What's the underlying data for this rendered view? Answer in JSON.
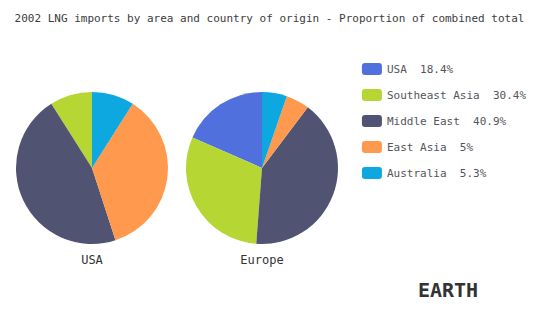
{
  "chart_data": {
    "type": "pie",
    "title": "2002 LNG imports by area and country of origin - Proportion of combined total",
    "categories": [
      "USA  18.4%",
      "Southeast Asia  30.4%",
      "Middle East  40.9%",
      "East Asia  5%",
      "Australia  5.3%"
    ],
    "series": [
      {
        "name": "USA",
        "values": [
          0,
          9.0,
          46.0,
          36.0,
          9.0
        ]
      },
      {
        "name": "Europe",
        "values": [
          18.4,
          30.4,
          40.9,
          5.0,
          5.3
        ]
      }
    ],
    "annotation": "EARTH",
    "legend": "right"
  }
}
